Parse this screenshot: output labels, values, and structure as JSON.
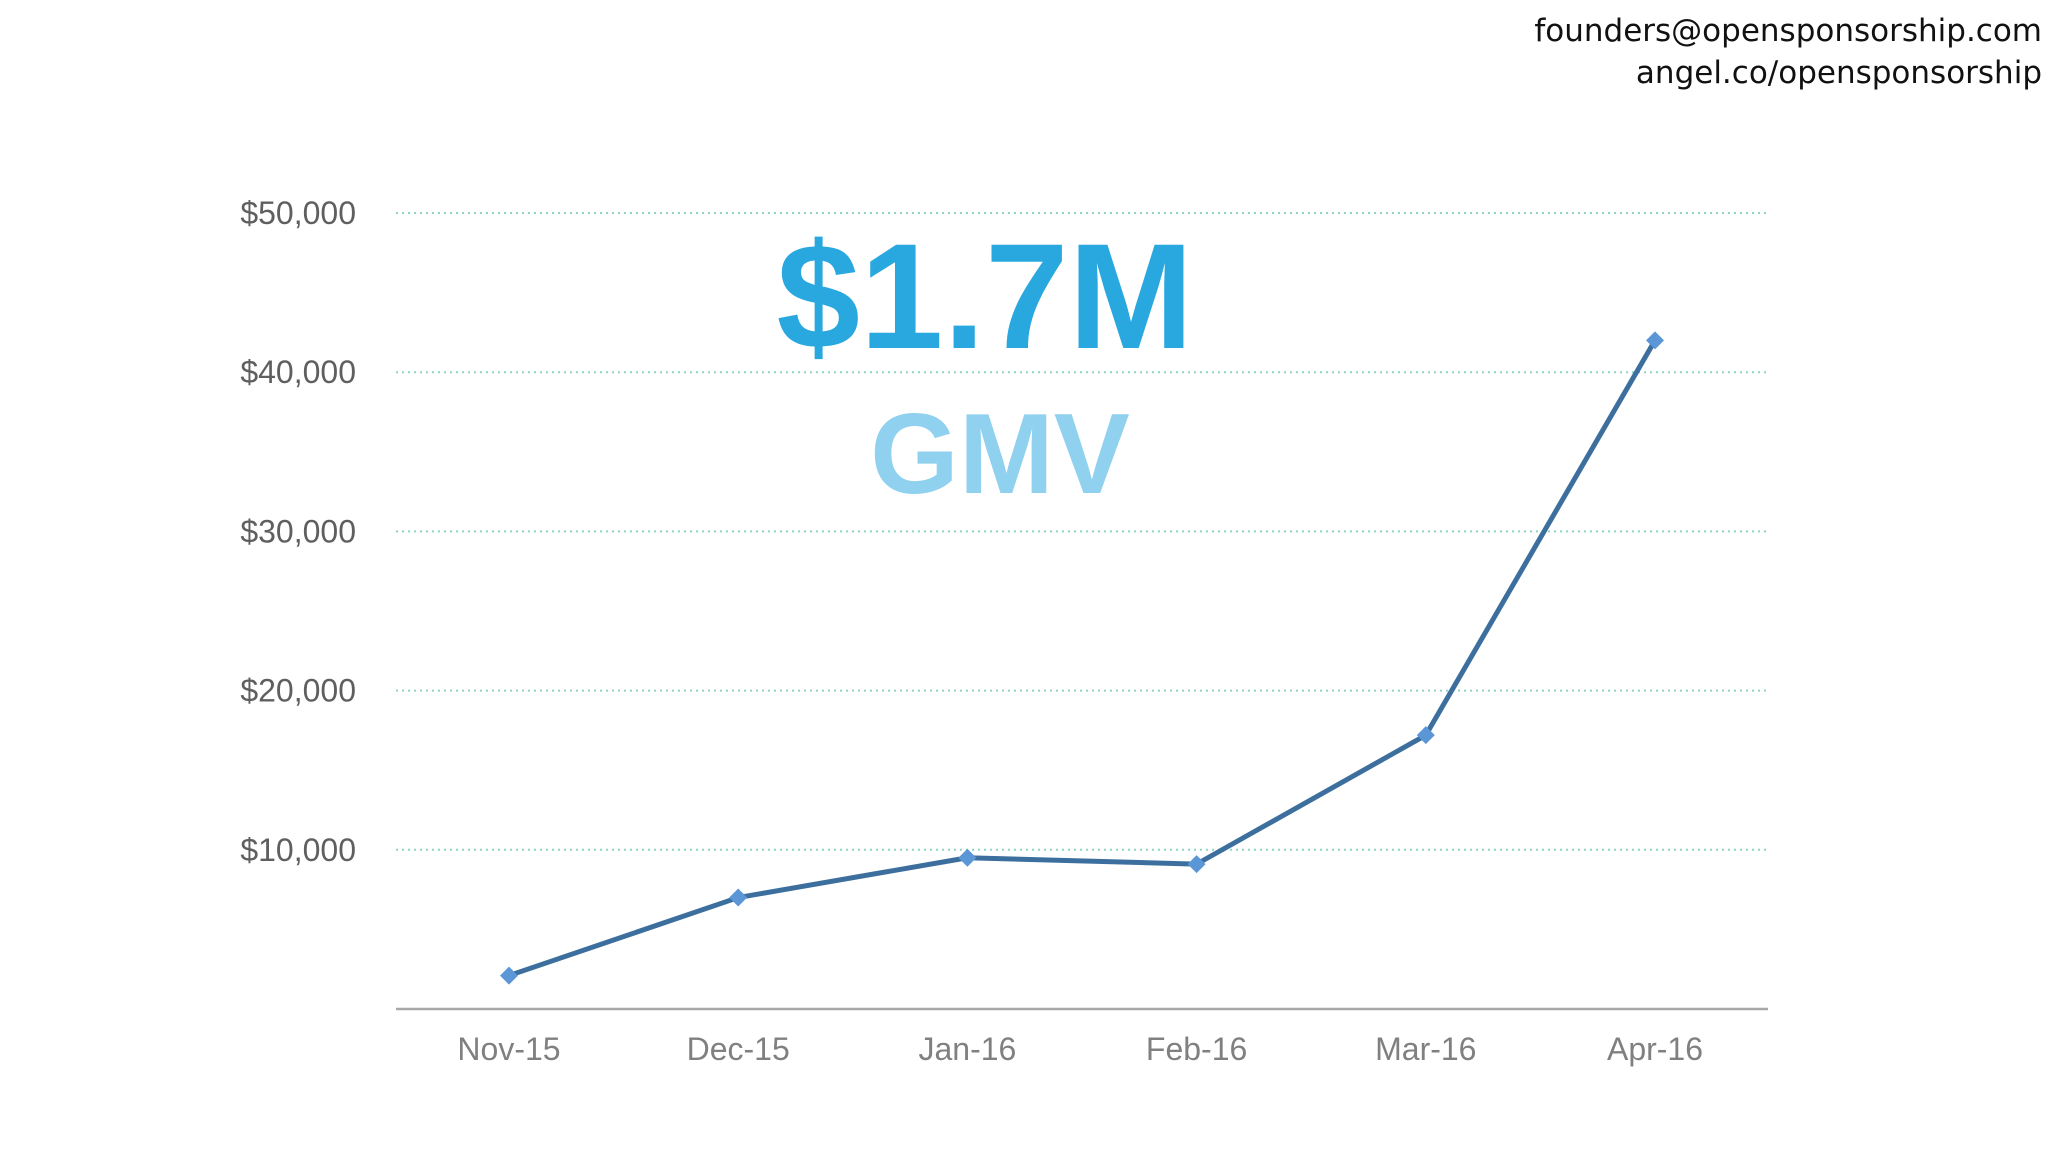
{
  "contact": {
    "email": "founders@opensponsorship.com",
    "angel": "angel.co/opensponsorship"
  },
  "headline": {
    "value": "$1.7M",
    "label": "GMV"
  },
  "colors": {
    "line": "#3d6f9e",
    "marker": "#5b96d6",
    "grid": "#8fd4c4",
    "axis": "#a8a8a8",
    "headline": "#29a8df",
    "subheadline": "#8fd1ee"
  },
  "chart_data": {
    "type": "line",
    "title": "",
    "xlabel": "",
    "ylabel": "",
    "categories": [
      "Nov-15",
      "Dec-15",
      "Jan-16",
      "Feb-16",
      "Mar-16",
      "Apr-16"
    ],
    "series": [
      {
        "name": "GMV",
        "values": [
          2100,
          7000,
          9500,
          9100,
          17200,
          42000
        ]
      }
    ],
    "ylim": [
      0,
      50000
    ],
    "yticks": [
      10000,
      20000,
      30000,
      40000,
      50000
    ],
    "ytick_labels": [
      "$10,000",
      "$20,000",
      "$30,000",
      "$40,000",
      "$50,000"
    ],
    "grid": true,
    "legend": "none"
  }
}
